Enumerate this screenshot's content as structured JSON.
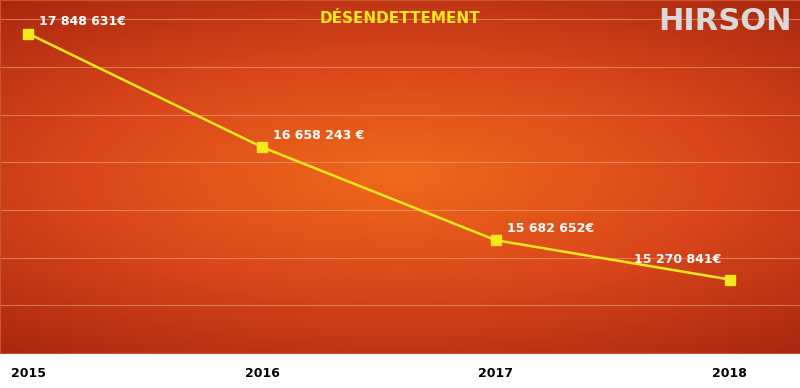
{
  "chart_data": {
    "type": "line",
    "title": "DÉSENDETTEMENT",
    "annotations": [
      "HIRSON"
    ],
    "categories": [
      "2015",
      "2016",
      "2017",
      "2018"
    ],
    "values": [
      17848631,
      16658243,
      15682652,
      15270841
    ],
    "value_labels": [
      "17 848 631€",
      "16 658 243 €",
      "15 682 652€",
      "15 270 841€"
    ],
    "data_labels": true,
    "color": "#f7e81c",
    "marker": "square",
    "line_style": "solid",
    "ylim": [
      14500000,
      18200000
    ],
    "yticks": [
      14500000,
      15000000,
      15500000,
      16000000,
      16500000,
      17000000,
      17500000,
      18000000
    ],
    "grid": true,
    "tick_labels": "x"
  }
}
